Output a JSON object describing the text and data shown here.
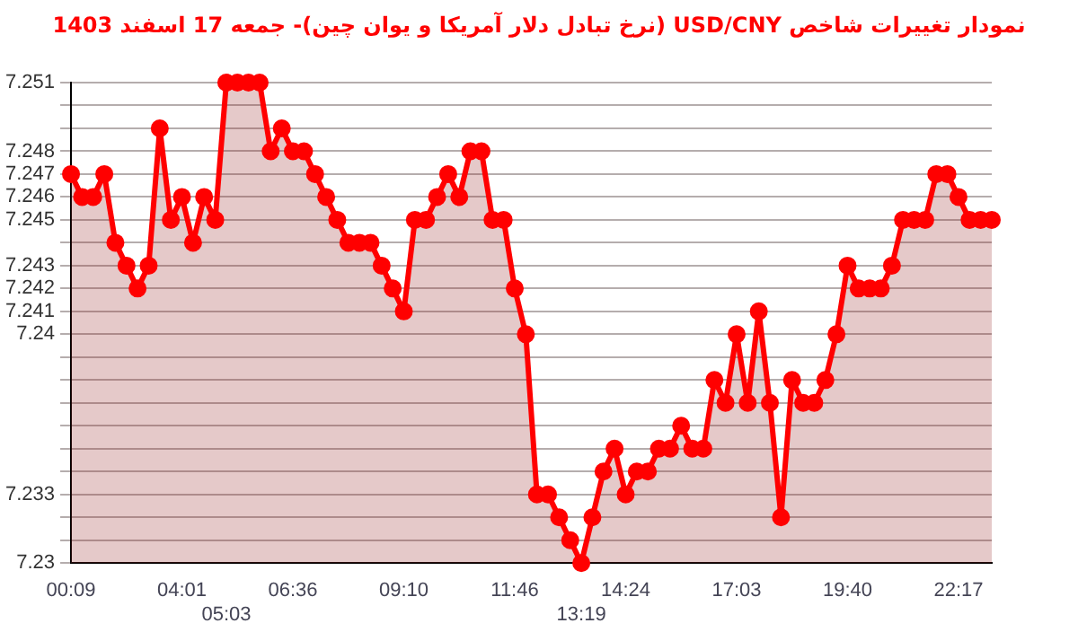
{
  "chart_data": {
    "type": "area",
    "title": "نمودار تغییرات شاخص USD/CNY (نرخ تبادل دلار آمریکا و یوان چین)- جمعه  17 اسفند 1403",
    "categories": [
      "00:09",
      null,
      null,
      null,
      null,
      null,
      null,
      null,
      null,
      null,
      "04:01",
      null,
      null,
      null,
      "05:03",
      null,
      null,
      null,
      null,
      null,
      "06:36",
      null,
      null,
      null,
      null,
      null,
      null,
      null,
      null,
      null,
      "09:10",
      null,
      null,
      null,
      null,
      null,
      null,
      null,
      null,
      null,
      "11:46",
      null,
      null,
      null,
      null,
      null,
      "13:19",
      null,
      null,
      null,
      "14:24",
      null,
      null,
      null,
      null,
      null,
      null,
      null,
      null,
      null,
      "17:03",
      null,
      null,
      null,
      null,
      null,
      null,
      null,
      null,
      null,
      "19:40",
      null,
      null,
      null,
      null,
      null,
      null,
      null,
      null,
      null,
      "22:17",
      null,
      null,
      null
    ],
    "series": [
      {
        "color": "#ff0000",
        "values": [
          7.247,
          7.246,
          7.246,
          7.247,
          7.244,
          7.243,
          7.242,
          7.243,
          7.249,
          7.245,
          7.246,
          7.244,
          7.246,
          7.245,
          7.251,
          7.251,
          7.251,
          7.251,
          7.248,
          7.249,
          7.248,
          7.248,
          7.247,
          7.246,
          7.245,
          7.244,
          7.244,
          7.244,
          7.243,
          7.242,
          7.241,
          7.245,
          7.245,
          7.246,
          7.247,
          7.246,
          7.248,
          7.248,
          7.245,
          7.245,
          7.242,
          7.24,
          7.233,
          7.233,
          7.232,
          7.231,
          7.23,
          7.232,
          7.234,
          7.235,
          7.233,
          7.234,
          7.234,
          7.235,
          7.235,
          7.236,
          7.235,
          7.235,
          7.238,
          7.237,
          7.24,
          7.237,
          7.241,
          7.237,
          7.232,
          7.238,
          7.237,
          7.237,
          7.238,
          7.24,
          7.243,
          7.242,
          7.242,
          7.242,
          7.243,
          7.245,
          7.245,
          7.245,
          7.247,
          7.247,
          7.246,
          7.245,
          7.245,
          7.245
        ]
      }
    ],
    "ylim": [
      7.23,
      7.251
    ],
    "yticks": [
      7.23,
      {
        "value": 7.231,
        "label": null
      },
      {
        "value": 7.232,
        "label": null
      },
      7.233,
      {
        "value": 7.234,
        "label": null
      },
      {
        "value": 7.235,
        "label": null
      },
      {
        "value": 7.236,
        "label": null
      },
      {
        "value": 7.237,
        "label": null
      },
      {
        "value": 7.238,
        "label": null
      },
      {
        "value": 7.239,
        "label": null
      },
      7.24,
      7.241,
      7.242,
      7.243,
      {
        "value": 7.244,
        "label": null
      },
      7.245,
      7.246,
      7.247,
      7.248,
      {
        "value": 7.249,
        "label": null
      },
      {
        "value": 7.25,
        "label": null
      },
      7.251
    ],
    "grid": "y",
    "legend": false,
    "marker": "circle",
    "line_style": "solid"
  }
}
